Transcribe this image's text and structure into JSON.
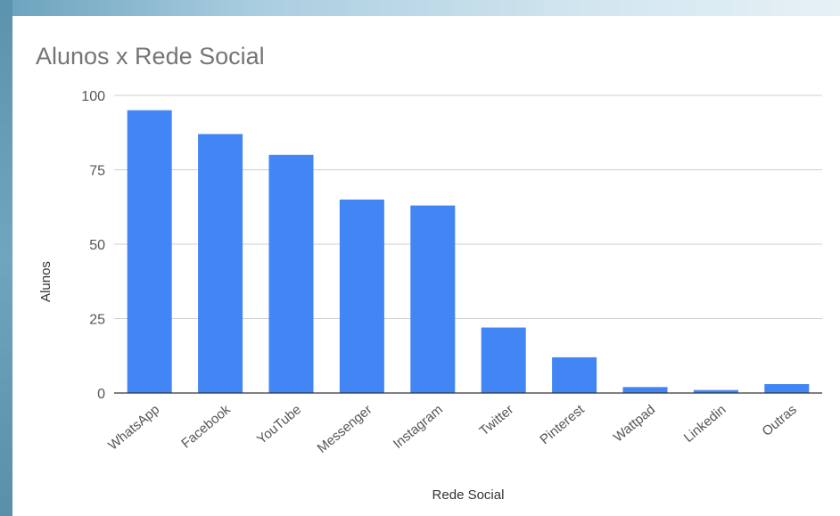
{
  "chart_data": {
    "type": "bar",
    "title": "Alunos x Rede Social",
    "xlabel": "Rede Social",
    "ylabel": "Alunos",
    "categories": [
      "WhatsApp",
      "Facebook",
      "YouTube",
      "Messenger",
      "Instagram",
      "Twitter",
      "Pinterest",
      "Wattpad",
      "Linkedin",
      "Outras"
    ],
    "values": [
      95,
      87,
      80,
      65,
      63,
      22,
      12,
      2,
      1,
      3
    ],
    "ylim": [
      0,
      100
    ],
    "yticks": [
      0,
      25,
      50,
      75,
      100
    ],
    "bar_color": "#4285f4",
    "grid": true,
    "legend": "none"
  },
  "colors": {
    "bar": "#4285f4",
    "text_title": "#757575",
    "text_axis": "#555555",
    "gridline": "#cccccc",
    "baseline": "#333333"
  }
}
